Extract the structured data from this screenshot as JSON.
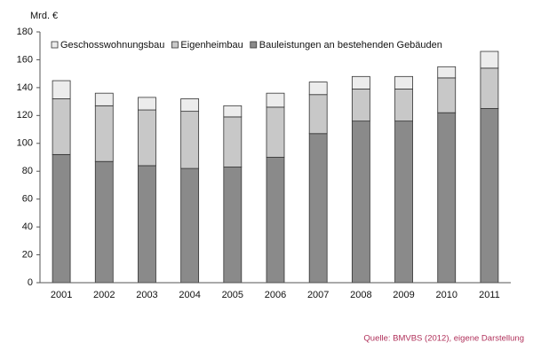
{
  "chart_data": {
    "type": "stacked-bar",
    "y_label": "Mrd. €",
    "categories": [
      "2001",
      "2002",
      "2003",
      "2004",
      "2005",
      "2006",
      "2007",
      "2008",
      "2009",
      "2010",
      "2011"
    ],
    "series": [
      {
        "name": "Geschosswohnungsbau",
        "color": "#ececec",
        "values": [
          13,
          9,
          9,
          9,
          8,
          10,
          9,
          9,
          9,
          8,
          12
        ]
      },
      {
        "name": "Eigenheimbau",
        "color": "#c8c8c8",
        "values": [
          40,
          40,
          40,
          41,
          36,
          36,
          28,
          23,
          23,
          25,
          29
        ]
      },
      {
        "name": "Bauleistungen an bestehenden Gebäuden",
        "color": "#8a8a8a",
        "values": [
          92,
          87,
          84,
          82,
          83,
          90,
          107,
          116,
          116,
          122,
          125
        ]
      }
    ],
    "ylim": [
      0,
      180
    ],
    "yticks": [
      0,
      20,
      40,
      60,
      80,
      100,
      120,
      140,
      160,
      180
    ],
    "grid": false,
    "source": "Quelle: BMVBS (2012), eigene Darstellung"
  }
}
